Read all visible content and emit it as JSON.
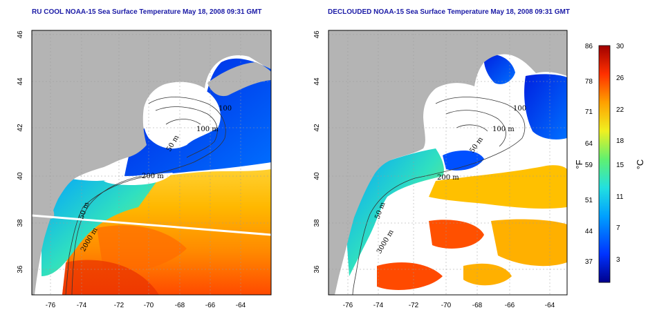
{
  "panels": [
    {
      "title": "RU COOL NOAA-15 Sea Surface Temperature May 18, 2008 09:31 GMT",
      "contour_labels": [
        "100",
        "100 m",
        "50 m",
        "200 m",
        "50 m",
        "2000 m"
      ]
    },
    {
      "title": "DECLOUDED NOAA-15 Sea Surface Temperature May 18, 2008 09:31 GMT",
      "contour_labels": [
        "100",
        "100 m",
        "50 m",
        "200 m",
        "50 m",
        "3000 m"
      ]
    }
  ],
  "axes": {
    "x_ticks": [
      "-76",
      "-74",
      "-72",
      "-70",
      "-68",
      "-66",
      "-64"
    ],
    "y_ticks": [
      "46",
      "44",
      "42",
      "40",
      "38",
      "36"
    ]
  },
  "colorbar": {
    "fahrenheit_ticks": [
      "86",
      "78",
      "71",
      "64",
      "59",
      "51",
      "44",
      "37"
    ],
    "celsius_ticks": [
      "30",
      "26",
      "22",
      "18",
      "15",
      "11",
      "7",
      "3"
    ],
    "fahrenheit_unit": "°F",
    "celsius_unit": "°C",
    "colors": [
      "#00008c",
      "#0033ff",
      "#00a0ff",
      "#22e0e0",
      "#60f070",
      "#f0f020",
      "#ffa000",
      "#ff3000",
      "#a00000"
    ]
  },
  "colors": {
    "land": "#b4b4b4",
    "cloud_mask": "#ffffff",
    "title": "#1a1aa6"
  }
}
